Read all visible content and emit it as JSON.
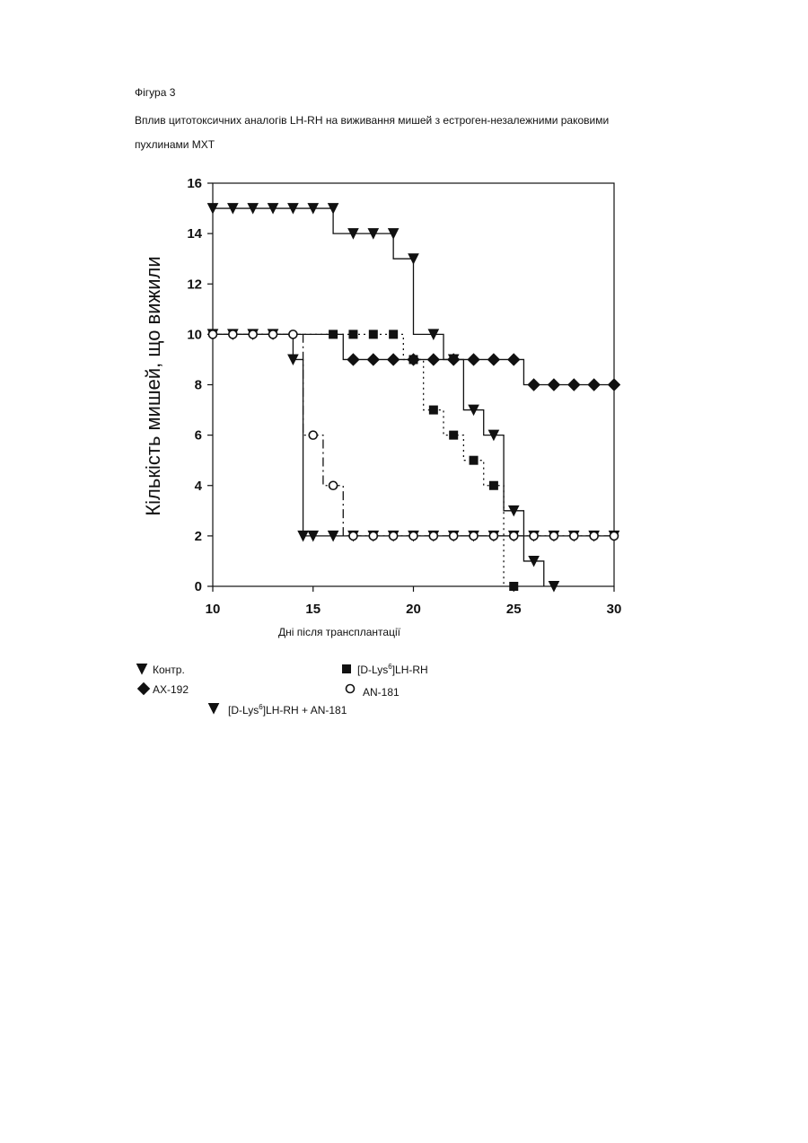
{
  "figure": {
    "label": "Фігура 3",
    "caption_line1": "Вплив цитотоксичних аналогів LH-RH на виживання мишей з естроген-незалежними раковими",
    "caption_line2": "пухлинами МХТ"
  },
  "chart_data": {
    "type": "line",
    "subtype": "step (Kaplan-Meier survival)",
    "xlabel": "Дні після трансплантації",
    "ylabel": "Кількість мишей, що вижили",
    "xlim": [
      10,
      30
    ],
    "ylim": [
      0,
      16
    ],
    "x_ticks": [
      10,
      15,
      20,
      25,
      30
    ],
    "y_ticks": [
      0,
      2,
      4,
      6,
      8,
      10,
      12,
      14,
      16
    ],
    "grid": false,
    "legend_position": "bottom",
    "series": [
      {
        "name": "Контр.",
        "marker": "triangle-down-filled",
        "line": "solid",
        "steps": [
          [
            10,
            10
          ],
          [
            14,
            9
          ],
          [
            14.5,
            2
          ],
          [
            30,
            2
          ]
        ],
        "x": [
          10,
          11,
          12,
          13,
          14,
          14.5,
          15,
          16,
          17,
          18,
          19,
          20,
          21,
          22,
          23,
          24,
          25,
          26,
          27,
          28,
          29,
          30
        ],
        "y": [
          10,
          10,
          10,
          10,
          9,
          2,
          2,
          2,
          2,
          2,
          2,
          2,
          2,
          2,
          2,
          2,
          2,
          2,
          2,
          2,
          2,
          2
        ]
      },
      {
        "name": "AX-192",
        "marker": "diamond-filled",
        "line": "solid",
        "steps": [
          [
            10,
            10
          ],
          [
            16.5,
            9
          ],
          [
            25.5,
            8
          ],
          [
            30,
            8
          ]
        ],
        "x": [
          17,
          18,
          19,
          20,
          21,
          22,
          23,
          24,
          25,
          26,
          27,
          28,
          29,
          30
        ],
        "y": [
          9,
          9,
          9,
          9,
          9,
          9,
          9,
          9,
          9,
          8,
          8,
          8,
          8,
          8
        ]
      },
      {
        "name": "[D-Lys6]LH-RH",
        "marker": "square-filled",
        "line": "dotted",
        "steps": [
          [
            10,
            10
          ],
          [
            19.5,
            9
          ],
          [
            20.5,
            7
          ],
          [
            21.5,
            6
          ],
          [
            22.5,
            5
          ],
          [
            23.5,
            4
          ],
          [
            24.5,
            0
          ]
        ],
        "x": [
          16,
          17,
          18,
          19,
          20,
          21,
          22,
          23,
          24,
          25
        ],
        "y": [
          10,
          10,
          10,
          10,
          9,
          7,
          6,
          5,
          4,
          0
        ]
      },
      {
        "name": "AN-181",
        "marker": "open-circle",
        "line": "dash-dot",
        "steps": [
          [
            10,
            10
          ],
          [
            14.5,
            6
          ],
          [
            15.5,
            4
          ],
          [
            16.5,
            2
          ],
          [
            30,
            2
          ]
        ],
        "x": [
          10,
          11,
          12,
          13,
          14,
          15,
          16,
          17,
          18,
          19,
          20,
          21,
          22,
          23,
          24,
          25,
          26,
          27,
          28,
          29,
          30
        ],
        "y": [
          10,
          10,
          10,
          10,
          10,
          6,
          4,
          2,
          2,
          2,
          2,
          2,
          2,
          2,
          2,
          2,
          2,
          2,
          2,
          2,
          2
        ]
      },
      {
        "name": "[D-Lys6]LH-RH + AN-181",
        "marker": "triangle-down-open",
        "line": "solid",
        "steps": [
          [
            10,
            15
          ],
          [
            16,
            14
          ],
          [
            19,
            13
          ],
          [
            20,
            10
          ],
          [
            21.5,
            9
          ],
          [
            22.5,
            7
          ],
          [
            23.5,
            6
          ],
          [
            24.5,
            3
          ],
          [
            25.5,
            1
          ],
          [
            26.5,
            0
          ]
        ],
        "x": [
          10,
          11,
          12,
          13,
          14,
          15,
          16,
          17,
          18,
          19,
          20,
          21,
          22,
          23,
          24,
          25,
          26,
          27
        ],
        "y": [
          15,
          15,
          15,
          15,
          15,
          15,
          15,
          14,
          14,
          14,
          13,
          10,
          9,
          7,
          6,
          3,
          1,
          0
        ]
      }
    ],
    "legend": [
      {
        "text": "Контр.",
        "sup": ""
      },
      {
        "text": "AX-192",
        "sup": ""
      },
      {
        "text": "[D-Lys",
        "sup": "6",
        "tail": "]LH-RH"
      },
      {
        "text": "AN-181",
        "sup": ""
      },
      {
        "text": "[D-Lys",
        "sup": "6",
        "tail": "]LH-RH + AN-181"
      }
    ]
  },
  "colors": {
    "ink": "#111111",
    "background": "#ffffff"
  }
}
